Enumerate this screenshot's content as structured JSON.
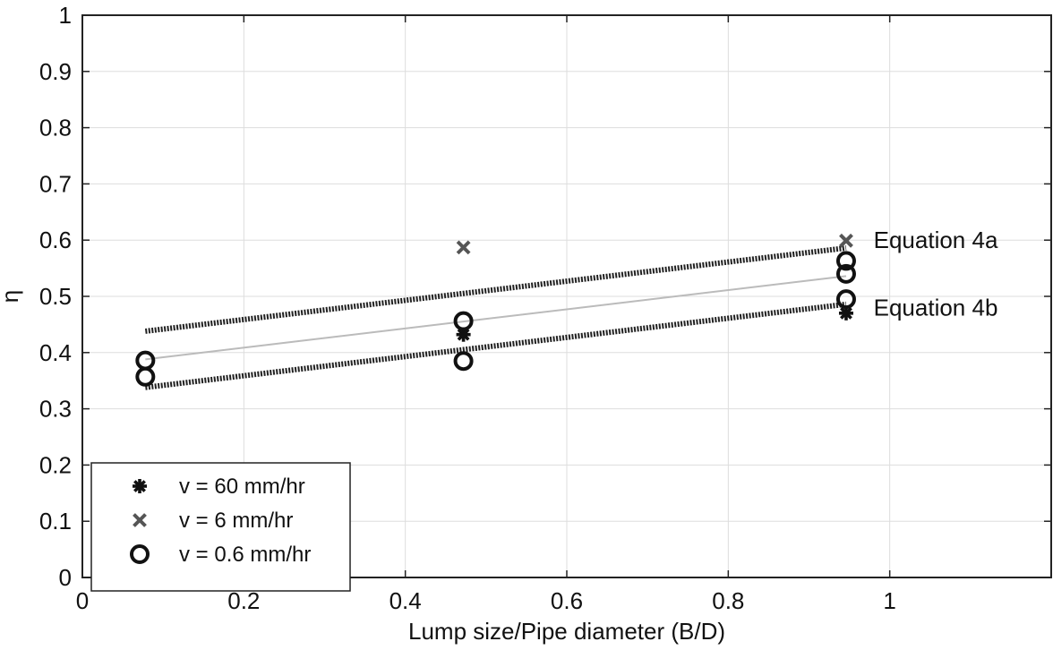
{
  "chart_data": {
    "type": "scatter",
    "title": "",
    "xlabel": "Lump size/Pipe diameter (B/D)",
    "ylabel": "η",
    "xlim": [
      0,
      1.2
    ],
    "ylim": [
      0,
      1
    ],
    "x_ticks": [
      0,
      0.2,
      0.4,
      0.6,
      0.8,
      1
    ],
    "x_tick_labels": [
      "0",
      "0.2",
      "0.4",
      "0.6",
      "0.8",
      "1"
    ],
    "y_ticks": [
      0,
      0.1,
      0.2,
      0.3,
      0.4,
      0.5,
      0.6,
      0.7,
      0.8,
      0.9,
      1
    ],
    "y_tick_labels": [
      "0",
      "0.1",
      "0.2",
      "0.3",
      "0.4",
      "0.5",
      "0.6",
      "0.7",
      "0.8",
      "0.9",
      "1"
    ],
    "grid": true,
    "legend_position": "bottom-left",
    "series": [
      {
        "name": "v = 60 mm/hr",
        "marker": "asterisk",
        "color": "#111111",
        "points": [
          [
            0.472,
            0.432
          ],
          [
            0.946,
            0.47
          ]
        ]
      },
      {
        "name": "v = 6 mm/hr",
        "marker": "x",
        "color": "#555555",
        "points": [
          [
            0.472,
            0.587
          ],
          [
            0.946,
            0.599
          ]
        ]
      },
      {
        "name": "v = 0.6 mm/hr",
        "marker": "circle",
        "color": "#111111",
        "points": [
          [
            0.078,
            0.386
          ],
          [
            0.078,
            0.357
          ],
          [
            0.472,
            0.456
          ],
          [
            0.472,
            0.385
          ],
          [
            0.946,
            0.563
          ],
          [
            0.946,
            0.54
          ],
          [
            0.946,
            0.495
          ]
        ]
      }
    ],
    "lines": [
      {
        "style": "thick-dotted",
        "color": "#222222",
        "points": [
          [
            0.078,
            0.438
          ],
          [
            0.946,
            0.586
          ]
        ]
      },
      {
        "style": "thin",
        "color": "#bbbbbb",
        "points": [
          [
            0.078,
            0.388
          ],
          [
            0.946,
            0.536
          ]
        ]
      },
      {
        "style": "thick-dotted",
        "color": "#222222",
        "points": [
          [
            0.078,
            0.338
          ],
          [
            0.946,
            0.486
          ]
        ]
      }
    ],
    "annotations": [
      {
        "text": "Equation 4a",
        "x": 0.98,
        "y": 0.6
      },
      {
        "text": "Equation 4b",
        "x": 0.98,
        "y": 0.48
      }
    ]
  }
}
